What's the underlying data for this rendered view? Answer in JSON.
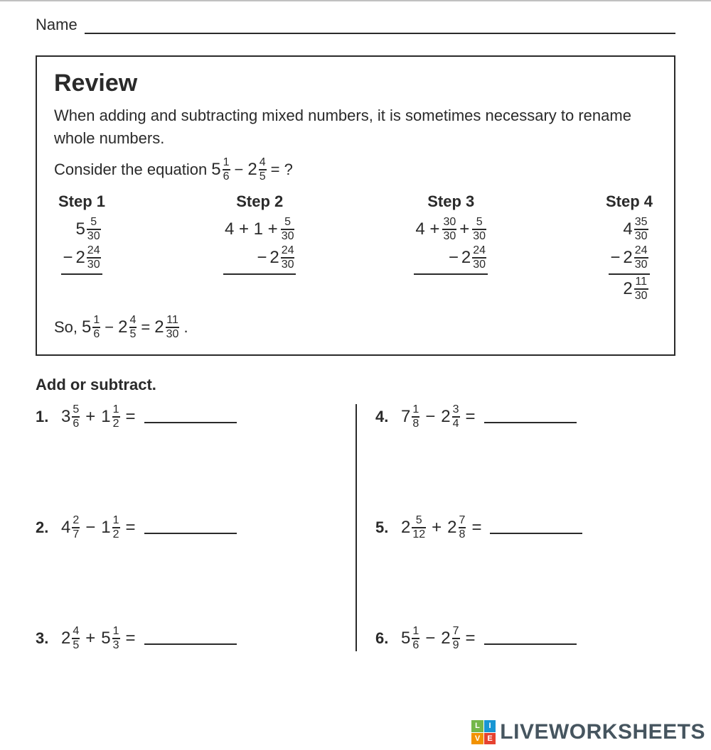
{
  "colors": {
    "text": "#2a2a2a",
    "border": "#2a2a2a",
    "page_top_rule": "#c0c0c0",
    "wm_text": "#46555f",
    "wm_green": "#74b74a",
    "wm_blue": "#1896d3",
    "wm_orange": "#f29200",
    "wm_red": "#e64230"
  },
  "header": {
    "name_label": "Name"
  },
  "review": {
    "title": "Review",
    "intro": "When adding and subtracting mixed numbers, it is sometimes necessary to rename whole numbers.",
    "consider_prefix": "Consider the equation",
    "consider_a": {
      "whole": "5",
      "num": "1",
      "den": "6"
    },
    "consider_op": "−",
    "consider_b": {
      "whole": "2",
      "num": "4",
      "den": "5"
    },
    "consider_suffix": "= ?",
    "steps": [
      {
        "label": "Step 1",
        "top_prefix": "",
        "top": {
          "whole": "5",
          "num": "5",
          "den": "30"
        },
        "bottom_op": "−",
        "bottom": {
          "whole": "2",
          "num": "24",
          "den": "30"
        },
        "result": null
      },
      {
        "label": "Step 2",
        "top_prefix": "4 + 1 +",
        "top": {
          "whole": "",
          "num": "5",
          "den": "30"
        },
        "bottom_op": "−",
        "bottom": {
          "whole": "2",
          "num": "24",
          "den": "30"
        },
        "result": null
      },
      {
        "label": "Step 3",
        "top_prefix": "4 +",
        "top_extra": {
          "num": "30",
          "den": "30"
        },
        "top_plus": "+",
        "top": {
          "whole": "",
          "num": "5",
          "den": "30"
        },
        "bottom_op": "−",
        "bottom": {
          "whole": "2",
          "num": "24",
          "den": "30"
        },
        "result": null
      },
      {
        "label": "Step 4",
        "top_prefix": "",
        "top": {
          "whole": "4",
          "num": "35",
          "den": "30"
        },
        "bottom_op": "−",
        "bottom": {
          "whole": "2",
          "num": "24",
          "den": "30"
        },
        "result": {
          "whole": "2",
          "num": "11",
          "den": "30"
        }
      }
    ],
    "so_prefix": "So,",
    "so_a": {
      "whole": "5",
      "num": "1",
      "den": "6"
    },
    "so_op": "−",
    "so_b": {
      "whole": "2",
      "num": "4",
      "den": "5"
    },
    "so_eq": "=",
    "so_r": {
      "whole": "2",
      "num": "11",
      "den": "30"
    },
    "so_suffix": "."
  },
  "instruction": "Add or subtract.",
  "problems_left": [
    {
      "n": "1.",
      "a": {
        "whole": "3",
        "num": "5",
        "den": "6"
      },
      "op": "+",
      "b": {
        "whole": "1",
        "num": "1",
        "den": "2"
      }
    },
    {
      "n": "2.",
      "a": {
        "whole": "4",
        "num": "2",
        "den": "7"
      },
      "op": "−",
      "b": {
        "whole": "1",
        "num": "1",
        "den": "2"
      }
    },
    {
      "n": "3.",
      "a": {
        "whole": "2",
        "num": "4",
        "den": "5"
      },
      "op": "+",
      "b": {
        "whole": "5",
        "num": "1",
        "den": "3"
      }
    }
  ],
  "problems_right": [
    {
      "n": "4.",
      "a": {
        "whole": "7",
        "num": "1",
        "den": "8"
      },
      "op": "−",
      "b": {
        "whole": "2",
        "num": "3",
        "den": "4"
      }
    },
    {
      "n": "5.",
      "a": {
        "whole": "2",
        "num": "5",
        "den": "12"
      },
      "op": "+",
      "b": {
        "whole": "2",
        "num": "7",
        "den": "8"
      }
    },
    {
      "n": "6.",
      "a": {
        "whole": "5",
        "num": "1",
        "den": "6"
      },
      "op": "−",
      "b": {
        "whole": "2",
        "num": "7",
        "den": "9"
      }
    }
  ],
  "watermark": {
    "cells": [
      "L",
      "I",
      "V",
      "E"
    ],
    "text": "LIVEWORKSHEETS"
  }
}
